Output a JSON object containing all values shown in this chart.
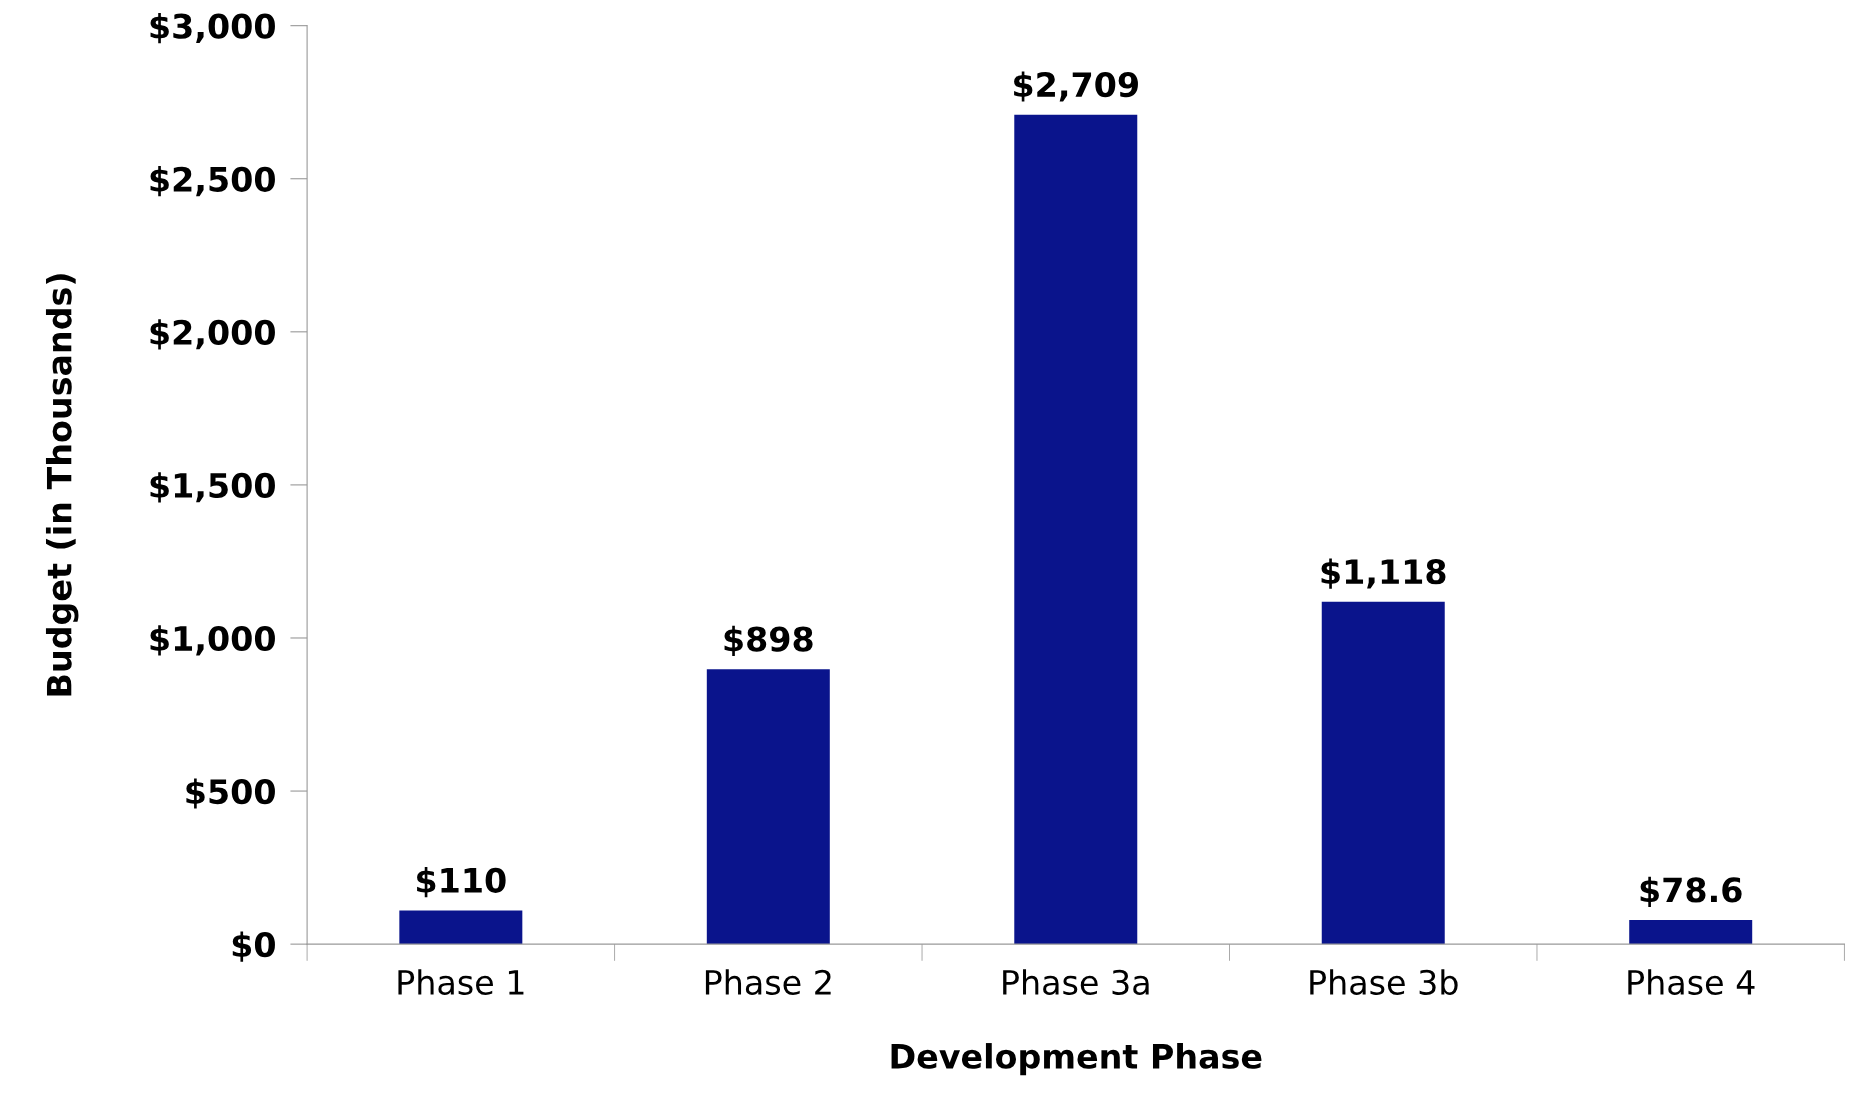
{
  "chart_data": {
    "type": "bar",
    "xlabel": "Development Phase",
    "ylabel": "Budget (in Thousands)",
    "categories": [
      "Phase 1",
      "Phase 2",
      "Phase 3a",
      "Phase 3b",
      "Phase 4"
    ],
    "values": [
      110,
      898,
      2709,
      1118,
      78.6
    ],
    "value_labels": [
      "$110",
      "$898",
      "$2,709",
      "$1,118",
      "$78.6"
    ],
    "color": "#0a148c",
    "ylim": [
      0,
      3000
    ],
    "yticks": [
      {
        "value": 0,
        "label": "$0"
      },
      {
        "value": 500,
        "label": "$500"
      },
      {
        "value": 1000,
        "label": "$1,000"
      },
      {
        "value": 1500,
        "label": "$1,500"
      },
      {
        "value": 2000,
        "label": "$2,000"
      },
      {
        "value": 2500,
        "label": "$2,500"
      },
      {
        "value": 3000,
        "label": "$3,000"
      }
    ],
    "grid": false
  }
}
